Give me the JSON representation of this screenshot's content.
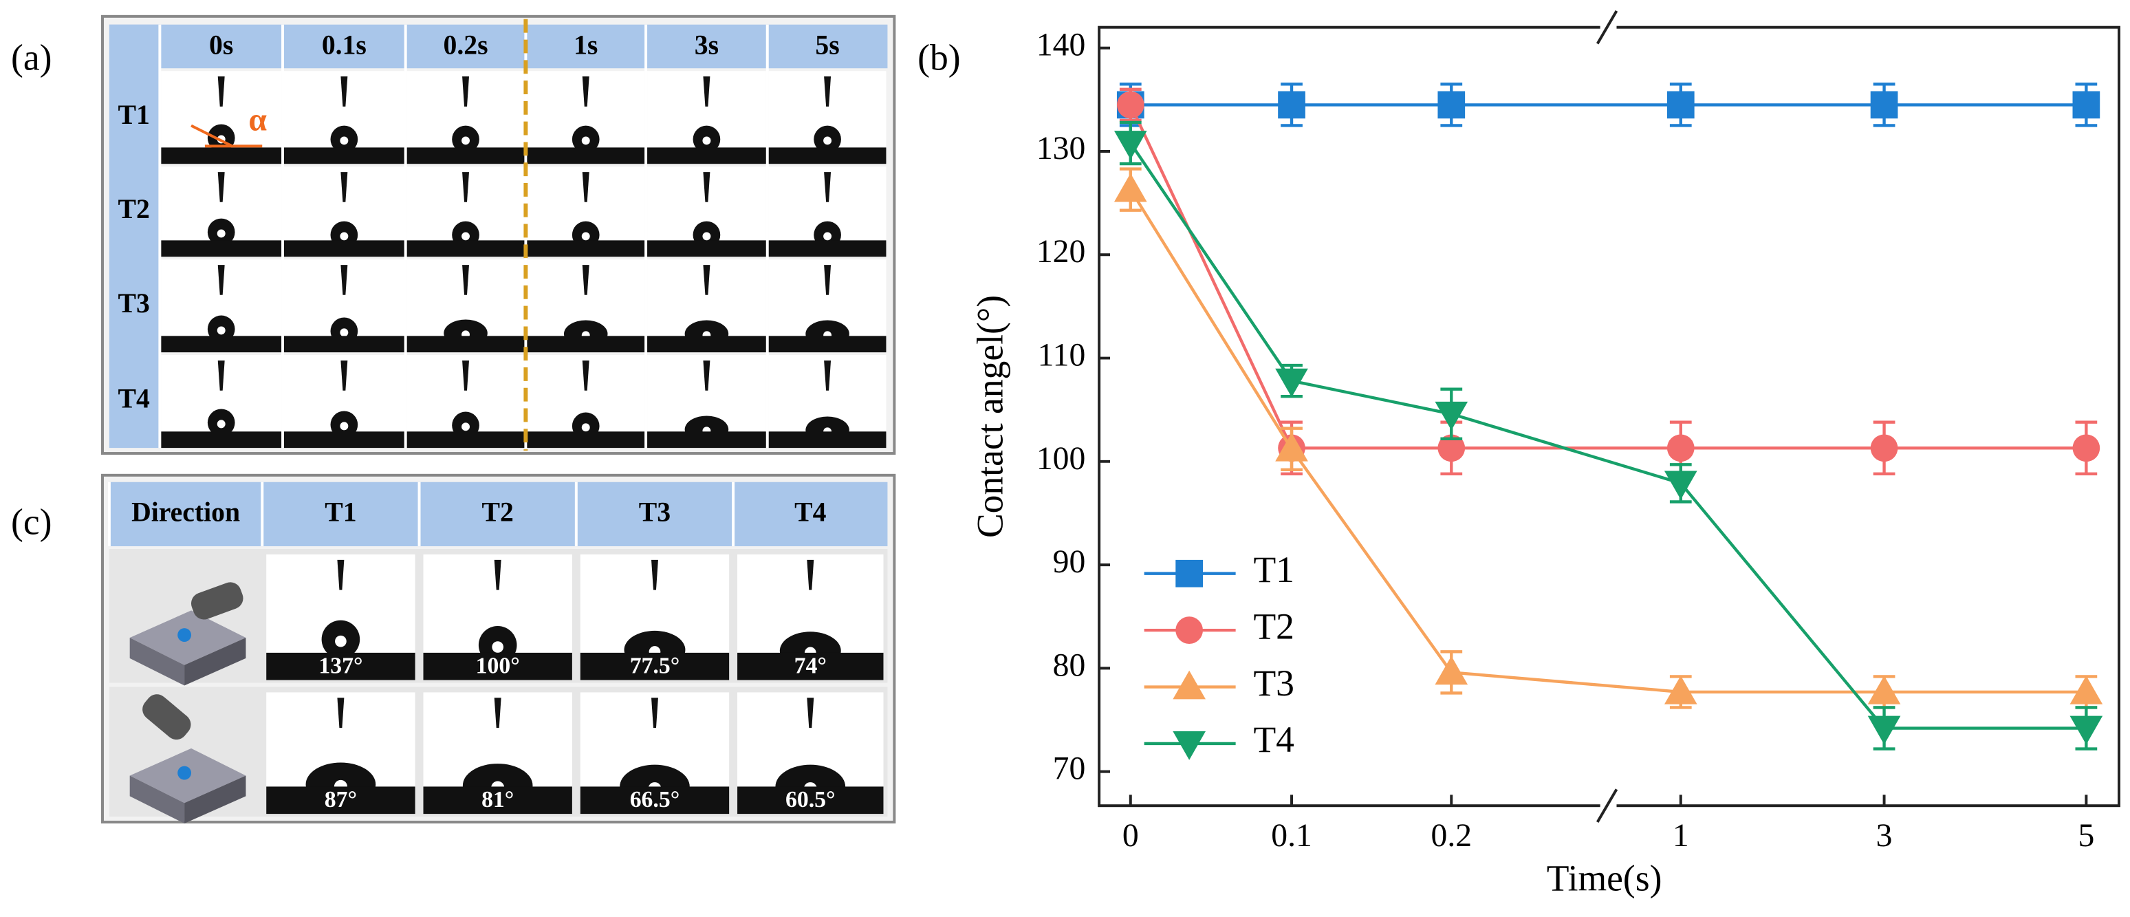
{
  "panel_labels": [
    "(a)",
    "(b)",
    "(c)"
  ],
  "table_a": {
    "columns": [
      "0s",
      "0.1s",
      "0.2s",
      "1s",
      "3s",
      "5s"
    ],
    "rows": [
      "T1",
      "T2",
      "T3",
      "T4"
    ],
    "annotation": "α"
  },
  "table_c": {
    "columns": [
      "Direction",
      "T1",
      "T2",
      "T3",
      "T4"
    ],
    "rows": [
      [
        "137°",
        "100°",
        "77.5°",
        "74°"
      ],
      [
        "87°",
        "81°",
        "66.5°",
        "60.5°"
      ]
    ]
  },
  "chart_data": {
    "type": "line",
    "xlabel": "Time(s)",
    "ylabel": "Contact angel(°)",
    "categories": [
      "0",
      "0.1",
      "0.2",
      "1",
      "3",
      "5"
    ],
    "ylim": [
      66.7,
      142
    ],
    "yticks": [
      70,
      80,
      90,
      100,
      110,
      120,
      130,
      140
    ],
    "legend": "lower left",
    "series": [
      {
        "name": "T1",
        "color": "#1e7fd2",
        "marker": "square",
        "values": [
          134.5,
          134.5,
          134.5,
          134.5,
          134.5,
          134.5
        ],
        "errors": [
          2,
          2,
          2,
          2,
          2,
          2
        ]
      },
      {
        "name": "T2",
        "color": "#f26b6b",
        "marker": "circle",
        "values": [
          134.5,
          101.3,
          101.3,
          101.3,
          101.3,
          101.3
        ],
        "errors": [
          1.5,
          2.5,
          2.5,
          2.5,
          2.5,
          2.5
        ]
      },
      {
        "name": "T3",
        "color": "#f7a35c",
        "marker": "triangle-up",
        "values": [
          126.3,
          101.2,
          79.6,
          77.7,
          77.7,
          77.7
        ],
        "errors": [
          2,
          2,
          2,
          1.5,
          1.5,
          1.5
        ]
      },
      {
        "name": "T4",
        "color": "#17a06a",
        "marker": "triangle-down",
        "values": [
          130.8,
          107.8,
          104.6,
          97.9,
          74.2,
          74.2
        ],
        "errors": [
          2,
          1.5,
          2.4,
          1.8,
          2,
          2
        ]
      }
    ]
  }
}
